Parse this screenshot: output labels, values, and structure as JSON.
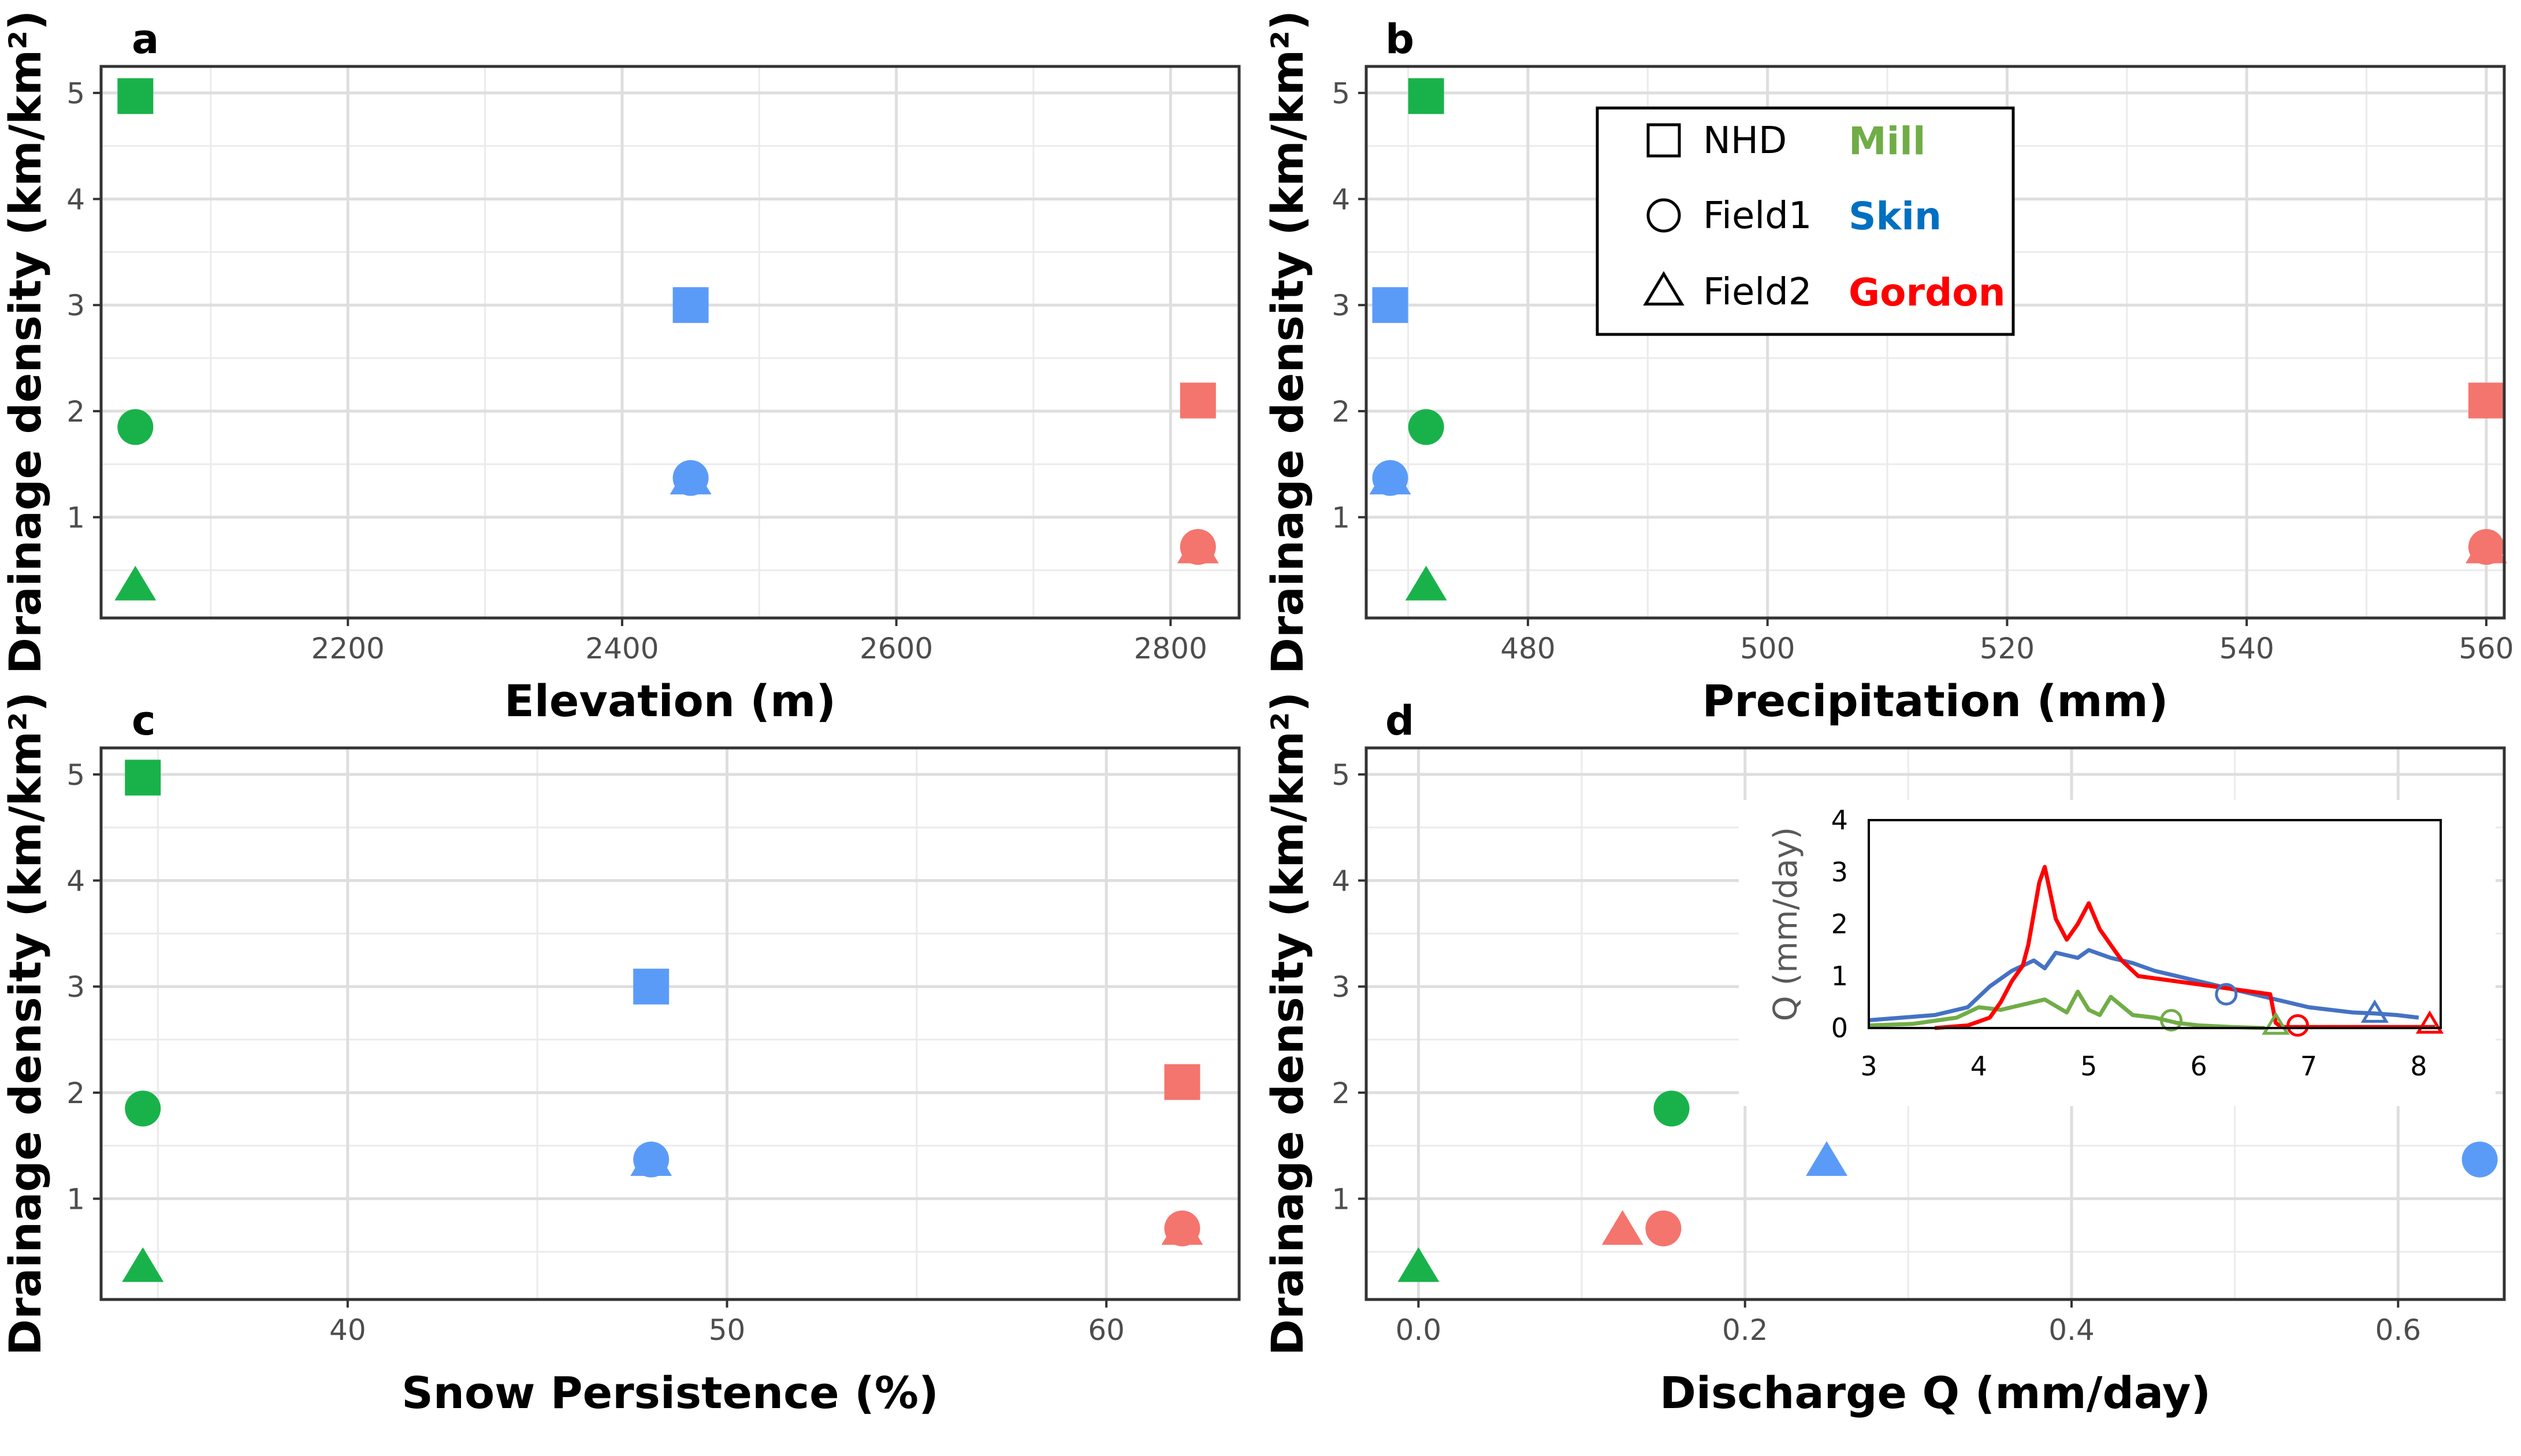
{
  "legend": {
    "shapes": [
      {
        "shape": "square",
        "label": "NHD"
      },
      {
        "shape": "circle",
        "label": "Field1"
      },
      {
        "shape": "triangle",
        "label": "Field2"
      }
    ],
    "sites": [
      {
        "name": "Mill",
        "color": "#70ad47"
      },
      {
        "name": "Skin",
        "color": "#0070c0"
      },
      {
        "name": "Gordon",
        "color": "#ff0000"
      }
    ]
  },
  "colors": {
    "Mill": "#19b24a",
    "Skin": "#5b9bf8",
    "Gordon": "#f4756d"
  },
  "chart_data": [
    {
      "panel": "a",
      "type": "scatter",
      "xlabel": "Elevation (m)",
      "ylabel": "Drainage density (km/km²)",
      "xlim": [
        2020,
        2850
      ],
      "ylim": [
        0.05,
        5.25
      ],
      "xticks": [
        "2200",
        "2400",
        "2600",
        "2800"
      ],
      "yticks": [
        "1",
        "2",
        "3",
        "4",
        "5"
      ],
      "points": [
        {
          "site": "Mill",
          "shape": "square",
          "x": 2045,
          "y": 4.97
        },
        {
          "site": "Mill",
          "shape": "circle",
          "x": 2045,
          "y": 1.85
        },
        {
          "site": "Mill",
          "shape": "triangle",
          "x": 2045,
          "y": 0.35
        },
        {
          "site": "Skin",
          "shape": "square",
          "x": 2450,
          "y": 3.0
        },
        {
          "site": "Skin",
          "shape": "circle",
          "x": 2450,
          "y": 1.37
        },
        {
          "site": "Skin",
          "shape": "triangle",
          "x": 2450,
          "y": 1.35
        },
        {
          "site": "Gordon",
          "shape": "square",
          "x": 2820,
          "y": 2.1
        },
        {
          "site": "Gordon",
          "shape": "circle",
          "x": 2820,
          "y": 0.72
        },
        {
          "site": "Gordon",
          "shape": "triangle",
          "x": 2820,
          "y": 0.7
        }
      ]
    },
    {
      "panel": "b",
      "type": "scatter",
      "xlabel": "Precipitation (mm)",
      "ylabel": "Drainage density (km/km²)",
      "xlim": [
        466.5,
        561.5
      ],
      "ylim": [
        0.05,
        5.25
      ],
      "xticks": [
        "480",
        "500",
        "520",
        "540",
        "560"
      ],
      "yticks": [
        "1",
        "2",
        "3",
        "4",
        "5"
      ],
      "points": [
        {
          "site": "Mill",
          "shape": "square",
          "x": 471.5,
          "y": 4.97
        },
        {
          "site": "Mill",
          "shape": "circle",
          "x": 471.5,
          "y": 1.85
        },
        {
          "site": "Mill",
          "shape": "triangle",
          "x": 471.5,
          "y": 0.35
        },
        {
          "site": "Skin",
          "shape": "square",
          "x": 468.5,
          "y": 3.0
        },
        {
          "site": "Skin",
          "shape": "circle",
          "x": 468.5,
          "y": 1.37
        },
        {
          "site": "Skin",
          "shape": "triangle",
          "x": 468.5,
          "y": 1.35
        },
        {
          "site": "Gordon",
          "shape": "square",
          "x": 560,
          "y": 2.1
        },
        {
          "site": "Gordon",
          "shape": "circle",
          "x": 560,
          "y": 0.72
        },
        {
          "site": "Gordon",
          "shape": "triangle",
          "x": 560,
          "y": 0.7
        }
      ]
    },
    {
      "panel": "c",
      "type": "scatter",
      "xlabel": "Snow Persistence (%)",
      "ylabel": "Drainage density (km/km²)",
      "xlim": [
        33.5,
        63.5
      ],
      "ylim": [
        0.05,
        5.25
      ],
      "xticks": [
        "40",
        "50",
        "60"
      ],
      "yticks": [
        "1",
        "2",
        "3",
        "4",
        "5"
      ],
      "points": [
        {
          "site": "Mill",
          "shape": "square",
          "x": 34.6,
          "y": 4.97
        },
        {
          "site": "Mill",
          "shape": "circle",
          "x": 34.6,
          "y": 1.85
        },
        {
          "site": "Mill",
          "shape": "triangle",
          "x": 34.6,
          "y": 0.35
        },
        {
          "site": "Skin",
          "shape": "square",
          "x": 48.0,
          "y": 3.0
        },
        {
          "site": "Skin",
          "shape": "circle",
          "x": 48.0,
          "y": 1.37
        },
        {
          "site": "Skin",
          "shape": "triangle",
          "x": 48.0,
          "y": 1.35
        },
        {
          "site": "Gordon",
          "shape": "square",
          "x": 62.0,
          "y": 2.1
        },
        {
          "site": "Gordon",
          "shape": "circle",
          "x": 62.0,
          "y": 0.72
        },
        {
          "site": "Gordon",
          "shape": "triangle",
          "x": 62.0,
          "y": 0.7
        }
      ]
    },
    {
      "panel": "d",
      "type": "scatter",
      "xlabel": "Discharge Q (mm/day)",
      "ylabel": "Drainage density (km/km²)",
      "xlim": [
        -0.032,
        0.665
      ],
      "ylim": [
        0.05,
        5.25
      ],
      "xticks": [
        "0.0",
        "0.2",
        "0.4",
        "0.6"
      ],
      "yticks": [
        "1",
        "2",
        "3",
        "4",
        "5"
      ],
      "points": [
        {
          "site": "Mill",
          "shape": "circle",
          "x": 0.155,
          "y": 1.85
        },
        {
          "site": "Mill",
          "shape": "triangle",
          "x": 0.0,
          "y": 0.35
        },
        {
          "site": "Skin",
          "shape": "circle",
          "x": 0.65,
          "y": 1.37
        },
        {
          "site": "Skin",
          "shape": "triangle",
          "x": 0.25,
          "y": 1.35
        },
        {
          "site": "Gordon",
          "shape": "circle",
          "x": 0.15,
          "y": 0.72
        },
        {
          "site": "Gordon",
          "shape": "triangle",
          "x": 0.125,
          "y": 0.7
        }
      ]
    },
    {
      "panel": "d-inset",
      "type": "line",
      "ylabel": "Q (mm/day)",
      "xlim": [
        3,
        8.2
      ],
      "ylim": [
        0,
        4
      ],
      "xticks": [
        "3",
        "4",
        "5",
        "6",
        "7",
        "8"
      ],
      "yticks": [
        "0",
        "1",
        "2",
        "3",
        "4"
      ],
      "series": [
        {
          "name": "Skin",
          "color": "#4472c4",
          "x": [
            3.0,
            3.3,
            3.6,
            3.9,
            4.1,
            4.3,
            4.5,
            4.6,
            4.7,
            4.8,
            4.9,
            5.0,
            5.2,
            5.4,
            5.6,
            5.8,
            6.0,
            6.2,
            6.4,
            6.6,
            6.8,
            7.0,
            7.2,
            7.4,
            7.6,
            7.8,
            8.0
          ],
          "values": [
            0.15,
            0.2,
            0.25,
            0.4,
            0.8,
            1.1,
            1.3,
            1.15,
            1.45,
            1.4,
            1.35,
            1.5,
            1.35,
            1.25,
            1.1,
            1.0,
            0.9,
            0.8,
            0.7,
            0.6,
            0.5,
            0.4,
            0.35,
            0.3,
            0.28,
            0.25,
            0.2
          ]
        },
        {
          "name": "Mill",
          "color": "#70ad47",
          "x": [
            3.0,
            3.4,
            3.8,
            4.0,
            4.2,
            4.4,
            4.6,
            4.8,
            4.9,
            5.0,
            5.1,
            5.2,
            5.4,
            5.6,
            5.8,
            6.0,
            6.3,
            6.6
          ],
          "values": [
            0.05,
            0.08,
            0.2,
            0.4,
            0.35,
            0.45,
            0.55,
            0.3,
            0.7,
            0.35,
            0.25,
            0.6,
            0.25,
            0.2,
            0.1,
            0.05,
            0.02,
            0.0
          ]
        },
        {
          "name": "Gordon",
          "color": "#ff0000",
          "x": [
            3.6,
            3.9,
            4.1,
            4.2,
            4.3,
            4.4,
            4.45,
            4.5,
            4.55,
            4.6,
            4.7,
            4.8,
            4.9,
            5.0,
            5.1,
            5.2,
            5.3,
            5.4,
            5.45,
            6.65,
            6.7,
            6.75,
            7.0,
            7.5,
            8.0,
            8.15
          ],
          "values": [
            0.0,
            0.05,
            0.2,
            0.5,
            0.9,
            1.2,
            1.6,
            2.2,
            2.8,
            3.1,
            2.1,
            1.7,
            2.0,
            2.4,
            1.9,
            1.6,
            1.3,
            1.1,
            1.0,
            0.65,
            0.1,
            0.02,
            0.02,
            0.02,
            0.02,
            0.02
          ]
        }
      ],
      "markers": [
        {
          "site": "Mill",
          "shape": "circle",
          "x": 5.75,
          "y": 0.15
        },
        {
          "site": "Mill",
          "shape": "triangle",
          "x": 6.7,
          "y": 0.05
        },
        {
          "site": "Skin",
          "shape": "circle",
          "x": 6.25,
          "y": 0.65
        },
        {
          "site": "Skin",
          "shape": "triangle",
          "x": 7.6,
          "y": 0.28
        },
        {
          "site": "Gordon",
          "shape": "circle",
          "x": 6.9,
          "y": 0.05
        },
        {
          "site": "Gordon",
          "shape": "triangle",
          "x": 8.1,
          "y": 0.07
        }
      ]
    }
  ]
}
